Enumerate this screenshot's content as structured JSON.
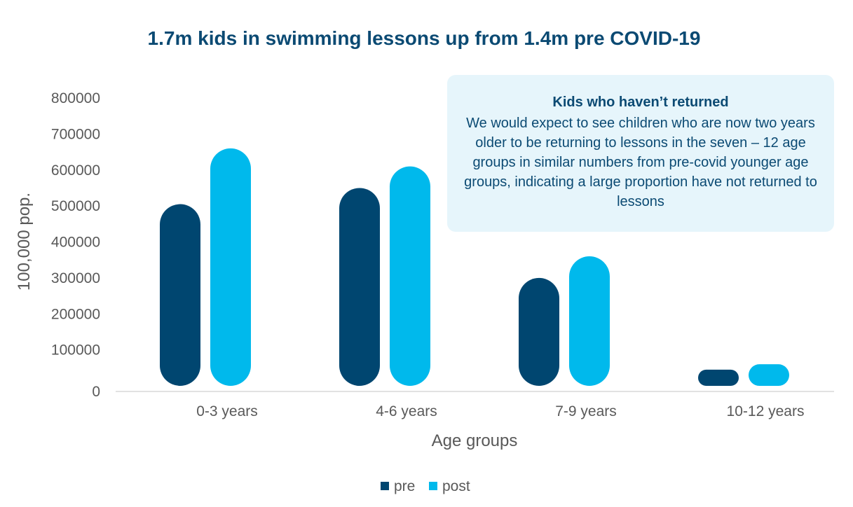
{
  "colors": {
    "pre": "#004670",
    "post": "#00b9ec",
    "title": "#0b4a73",
    "axis_text": "#595959",
    "baseline": "#d9d9d9",
    "note_bg": "#e6f5fb"
  },
  "note": {
    "title": "Kids who haven’t returned",
    "body": "We would expect to see children who are now two years older to be returning to lessons in the seven – 12 age groups in similar numbers from pre-covid younger age groups, indicating a large proportion have not returned to lessons"
  },
  "chart_data": {
    "type": "bar",
    "title": "1.7m kids in swimming lessons up from 1.4m pre COVID-19",
    "xlabel": "Age groups",
    "ylabel": "100,000 pop.",
    "categories": [
      "0-3 years",
      "4-6 years",
      "7-9 years",
      "10-12 years"
    ],
    "series": [
      {
        "name": "pre",
        "values": [
          505000,
          550000,
          300000,
          45000
        ]
      },
      {
        "name": "post",
        "values": [
          660000,
          610000,
          360000,
          60000
        ]
      }
    ],
    "ylim": [
      0,
      800000
    ],
    "yticks": [
      "0",
      "100000",
      "200000",
      "300000",
      "400000",
      "500000",
      "600000",
      "700000",
      "800000"
    ],
    "legend_position": "bottom",
    "grid": false
  }
}
